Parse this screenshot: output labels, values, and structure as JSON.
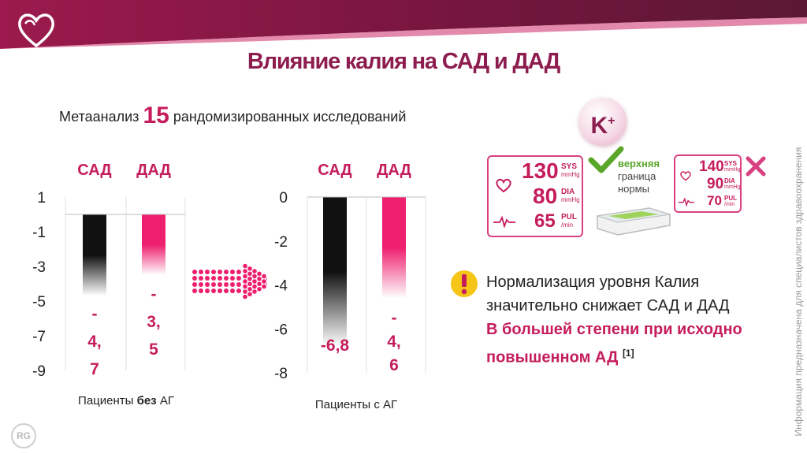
{
  "title": "Влияние калия на САД и ДАД",
  "meta_analysis": {
    "prefix": "Метаанализ",
    "count": "15",
    "suffix": "рандомизированных исследований"
  },
  "badge": {
    "symbol": "K",
    "charge": "+"
  },
  "monitors": {
    "main": {
      "sys": "130",
      "sys_label": "SYS",
      "sys_unit": "mmHg",
      "dia": "80",
      "dia_label": "DIA",
      "dia_unit": "mmHg",
      "pul": "65",
      "pul_label": "PUL",
      "pul_unit": "/min"
    },
    "upper_limit": {
      "line1": "верхняя",
      "line2": "граница",
      "line3": "нормы"
    },
    "high": {
      "sys": "140",
      "sys_label": "SYS",
      "sys_unit": "mmHg",
      "dia": "90",
      "dia_label": "DIA",
      "dia_unit": "mmHg",
      "pul": "70",
      "pul_label": "PUL",
      "pul_unit": "/min"
    }
  },
  "note": {
    "text": "Нормализация уровня Калия значительно снижает САД и ДАД",
    "highlight": "В большей степени при исходно повышенном АД",
    "ref": "[1]"
  },
  "side_text": "Информация предназначена для специалистов здравоохранения",
  "corner_mark": "RG",
  "colors": {
    "brand": "#8d1d4f",
    "accent": "#c51d5c",
    "bar_pink": "#ee1f6e",
    "bar_dark": "#111111",
    "check": "#5aa62a"
  },
  "chart_data": [
    {
      "type": "bar",
      "categories": [
        "САД",
        "ДАД"
      ],
      "values": [
        -4.7,
        -3.5
      ],
      "value_labels": [
        [
          "-",
          "4,",
          "7"
        ],
        [
          "-",
          "3,",
          "5"
        ]
      ],
      "xlabel": {
        "pre": "Пациенты ",
        "bold": "без",
        "post": " АГ"
      },
      "ylim": [
        -9,
        1
      ],
      "yticks": [
        "1",
        "-1",
        "-3",
        "-5",
        "-7",
        "-9"
      ],
      "ytick_values": [
        1,
        -1,
        -3,
        -5,
        -7,
        -9
      ]
    },
    {
      "type": "bar",
      "categories": [
        "САД",
        "ДАД"
      ],
      "values": [
        -6.8,
        -4.6
      ],
      "value_labels": [
        [
          "-6,8"
        ],
        [
          "-",
          "4,",
          "6"
        ]
      ],
      "xlabel": {
        "pre": "Пациенты с АГ",
        "bold": "",
        "post": ""
      },
      "ylim": [
        -8,
        0
      ],
      "yticks": [
        "0",
        "-2",
        "-4",
        "-6",
        "-8"
      ],
      "ytick_values": [
        0,
        -2,
        -4,
        -6,
        -8
      ]
    }
  ]
}
